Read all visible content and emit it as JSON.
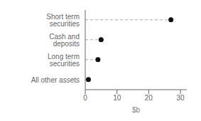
{
  "chart_data": {
    "type": "lollipop",
    "orientation": "horizontal",
    "categories": [
      "All other assets",
      "Long term securities",
      "Cash and deposits",
      "Short term securities"
    ],
    "values": [
      1.0,
      4.0,
      5.0,
      27.0
    ],
    "xlabel": "$b",
    "xlim": [
      0,
      32
    ],
    "xticks": [
      0,
      10,
      20,
      30
    ],
    "color": "#111111",
    "line_style": "dashed",
    "marker": "circle",
    "grid": false
  }
}
